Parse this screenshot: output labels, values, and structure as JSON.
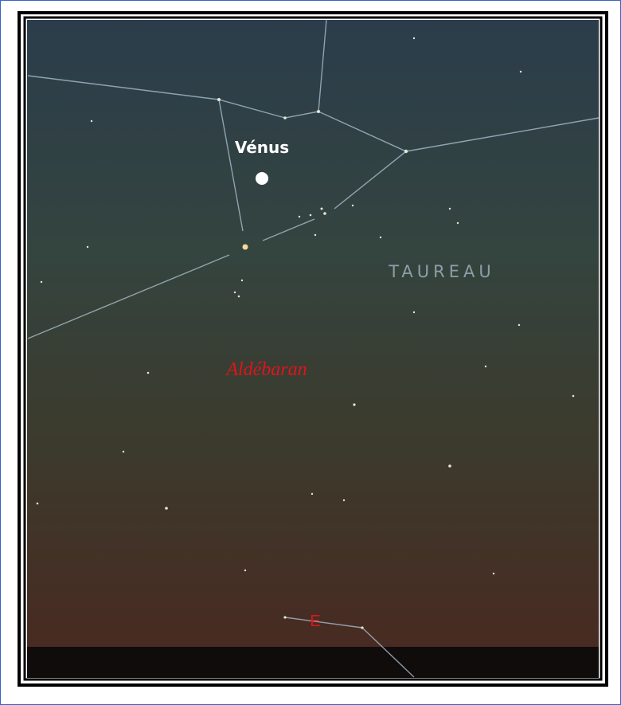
{
  "sky_map": {
    "planet_label": "Vénus",
    "constellation_label": "TAUREAU",
    "star_label": "Aldébaran",
    "direction_label": "E"
  }
}
